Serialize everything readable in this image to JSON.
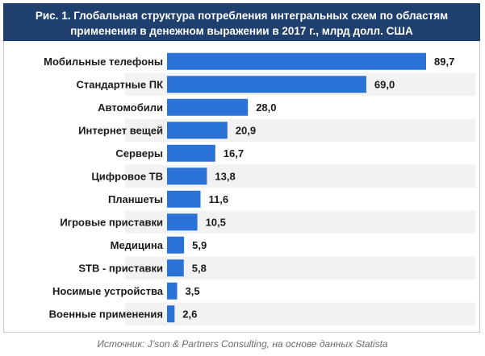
{
  "header": {
    "title": "Рис. 1. Глобальная структура потребления интегральных схем по областям\nприменения в денежном выражении в 2017 г., млрд долл. США"
  },
  "footer": {
    "source": "Источник: J’son & Partners Consulting, на основе данных Statista"
  },
  "colors": {
    "bar": "#2b72d6",
    "band_light": "#f2f2f2",
    "band_white": "#ffffff",
    "title_bg": "#1f3f6e"
  },
  "chart_data": {
    "type": "bar",
    "orientation": "horizontal",
    "title": "Рис. 1. Глобальная структура потребления интегральных схем по областям применения в денежном выражении в 2017 г., млрд долл. США",
    "categories": [
      "Мобильные телефоны",
      "Стандартные ПК",
      "Автомобили",
      "Интернет вещей",
      "Серверы",
      "Цифровое ТВ",
      "Планшеты",
      "Игровые приставки",
      "Медицина",
      "STB - приставки",
      "Носимые устройства",
      "Военные применения"
    ],
    "values": [
      89.7,
      69.0,
      28.0,
      20.9,
      16.7,
      13.8,
      11.6,
      10.5,
      5.9,
      5.8,
      3.5,
      2.6
    ],
    "value_labels": [
      "89,7",
      "69,0",
      "28,0",
      "20,9",
      "16,7",
      "13,8",
      "11,6",
      "10,5",
      "5,9",
      "5,8",
      "3,5",
      "2,6"
    ],
    "xlim": [
      0,
      89.7
    ],
    "xlabel": "",
    "ylabel": "",
    "grid": false,
    "legend": "none"
  }
}
